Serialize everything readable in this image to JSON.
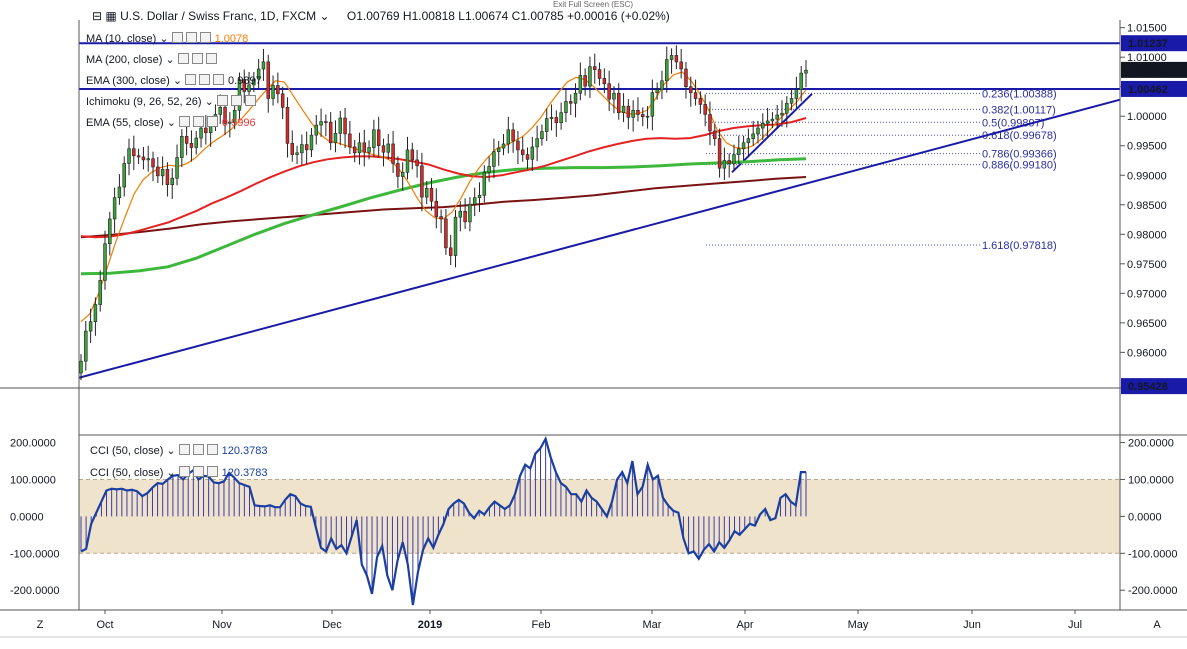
{
  "header": {
    "symbol_title": "U.S. Dollar / Swiss Franc, 1D, FXCM",
    "ohlc": "O1.00769  H1.00818  L1.00674  C1.00785  +0.00016 (+0.02%)",
    "exit_fullscreen": "Exit Full Screen (ESC)"
  },
  "indicators": [
    {
      "label": "MA (10, close)",
      "value": "1.0078",
      "color": "#f57c00"
    },
    {
      "label": "MA (200, close)",
      "value": "",
      "color": "#131722"
    },
    {
      "label": "EMA (300, close)",
      "value": "0.9897",
      "color": "#131722"
    },
    {
      "label": "Ichimoku (9, 26, 52, 26)",
      "value": "",
      "color": "#131722"
    },
    {
      "label": "EMA (55, close)",
      "value": "0.9996",
      "color": "#e53935"
    }
  ],
  "cci_labels": [
    {
      "label": "CCI (50, close)",
      "value": "120.3783"
    },
    {
      "label": "CCI (50, close)",
      "value": "120.3783"
    }
  ],
  "chart_data": {
    "type": "candlestick",
    "x_tick_labels": [
      "Oct",
      "Nov",
      "Dec",
      "2019",
      "Feb",
      "Mar",
      "Apr",
      "May",
      "Jun",
      "Jul"
    ],
    "y_tick_labels": [
      "1.01500",
      "1.01000",
      "1.00500",
      "1.00000",
      "0.99500",
      "0.99000",
      "0.98500",
      "0.98000",
      "0.97500",
      "0.97000",
      "0.96500",
      "0.96000"
    ],
    "ylim": [
      0.9543,
      1.0163
    ],
    "price_badges": [
      {
        "value": "1.01237",
        "fill": "#1a1aa8"
      },
      {
        "value": "1.00785",
        "fill": "#131722"
      },
      {
        "value": "1.00462",
        "fill": "#1a1aa8"
      },
      {
        "value": "0.95428",
        "fill": "#1a1aa8"
      }
    ],
    "horizontal_lines": [
      1.01237,
      1.00462
    ],
    "fibonacci": [
      {
        "label": "0.236(1.00388)",
        "value": 1.00388
      },
      {
        "label": "0.382(1.00117)",
        "value": 1.00117
      },
      {
        "label": "0.5(0.99897)",
        "value": 0.99897
      },
      {
        "label": "0.618(0.99678)",
        "value": 0.99678
      },
      {
        "label": "0.786(0.99366)",
        "value": 0.99366
      },
      {
        "label": "0.886(0.99180)",
        "value": 0.9918
      },
      {
        "label": "1.618(0.97818)",
        "value": 0.97818
      }
    ],
    "close_series": [
      0.9585,
      0.9636,
      0.9652,
      0.9681,
      0.9722,
      0.9784,
      0.9826,
      0.9862,
      0.988,
      0.992,
      0.9945,
      0.9933,
      0.9931,
      0.9926,
      0.9928,
      0.9914,
      0.9899,
      0.991,
      0.9884,
      0.9895,
      0.993,
      0.9966,
      0.9954,
      0.9947,
      0.9963,
      0.998,
      0.9972,
      0.9987,
      1.0003,
      1.0015,
      0.9988,
      0.999,
      1.001,
      1.0062,
      1.0042,
      1.0053,
      1.0063,
      1.008,
      1.0092,
      1.003,
      1.0052,
      1.0038,
      1.0015,
      0.9954,
      0.9935,
      0.9938,
      0.9952,
      0.9943,
      0.9968,
      0.9985,
      0.9991,
      0.999,
      0.9955,
      0.9971,
      0.9997,
      0.997,
      0.9948,
      0.9938,
      0.9955,
      0.9939,
      0.9947,
      0.9977,
      0.995,
      0.9939,
      0.9953,
      0.992,
      0.9898,
      0.9905,
      0.9943,
      0.9926,
      0.9916,
      0.9863,
      0.9878,
      0.9856,
      0.983,
      0.9826,
      0.9777,
      0.9764,
      0.9829,
      0.9839,
      0.9821,
      0.9851,
      0.9862,
      0.9866,
      0.9905,
      0.9915,
      0.994,
      0.9946,
      0.9953,
      0.9977,
      0.9958,
      0.9943,
      0.9935,
      0.9927,
      0.9948,
      0.9962,
      0.9974,
      0.9996,
      0.9998,
      0.9989,
      1.0006,
      1.0025,
      1.0022,
      1.0039,
      1.0069,
      1.0051,
      1.0084,
      1.0079,
      1.0064,
      1.0055,
      1.0029,
      1.0039,
      1.0006,
      1.0017,
      0.9998,
      1.001,
      1.0003,
      0.9999,
      1.0,
      1.004,
      1.0045,
      1.006,
      1.0096,
      1.0103,
      1.0092,
      1.008,
      1.005,
      1.004,
      1.003,
      1.002,
      1.0003,
      0.9975,
      0.9962,
      0.9912,
      0.9925,
      0.992,
      0.9935,
      0.9945,
      0.9955,
      0.9962,
      0.997,
      0.998,
      0.9988,
      0.9992,
      0.9995,
      1.0002,
      1.0005,
      1.0022,
      1.003,
      1.0045,
      1.0073,
      1.0078
    ],
    "ma10": [
      0.9652,
      0.9665,
      0.97,
      0.9745,
      0.979,
      0.983,
      0.9868,
      0.9892,
      0.9905,
      0.9913,
      0.9917,
      0.9915,
      0.992,
      0.993,
      0.9945,
      0.9957,
      0.9967,
      0.9978,
      0.9993,
      1.001,
      1.0028,
      1.0045,
      1.006,
      1.0058,
      1.0035,
      1.0012,
      0.999,
      0.997,
      0.9958,
      0.9955,
      0.995,
      0.9945,
      0.994,
      0.9935,
      0.9932,
      0.9925,
      0.991,
      0.9888,
      0.9862,
      0.984,
      0.9828,
      0.9826,
      0.9838,
      0.9862,
      0.989,
      0.9912,
      0.993,
      0.9945,
      0.995,
      0.9958,
      0.9966,
      0.998,
      0.9998,
      1.002,
      1.004,
      1.0058,
      1.0066,
      1.0062,
      1.005,
      1.0035,
      1.002,
      1.0008,
      1.0004,
      1.0004,
      1.001,
      1.003,
      1.0055,
      1.007,
      1.0075,
      1.006,
      1.0038,
      1.001,
      0.9975,
      0.9955,
      0.9947,
      0.9945,
      0.995,
      0.9962,
      0.9978,
      0.9995,
      1.001,
      1.0025,
      1.0045
    ],
    "ema55": [
      0.9797,
      0.9795,
      0.9796,
      0.98,
      0.9806,
      0.9813,
      0.982,
      0.983,
      0.984,
      0.9852,
      0.9862,
      0.9873,
      0.9885,
      0.9896,
      0.9906,
      0.9915,
      0.9922,
      0.9927,
      0.993,
      0.9932,
      0.9932,
      0.993,
      0.9927,
      0.9923,
      0.9918,
      0.991,
      0.9903,
      0.9898,
      0.9897,
      0.99,
      0.9905,
      0.991,
      0.9916,
      0.9924,
      0.9932,
      0.994,
      0.9947,
      0.9953,
      0.9958,
      0.9962,
      0.9963,
      0.9962,
      0.9963,
      0.9968,
      0.9975,
      0.998,
      0.9983,
      0.9985,
      0.9986,
      0.999,
      0.9997
    ],
    "ema300": [
      0.9795,
      0.9799,
      0.9804,
      0.981,
      0.9817,
      0.9822,
      0.9826,
      0.983,
      0.9834,
      0.9838,
      0.9842,
      0.9844,
      0.9846,
      0.985,
      0.9855,
      0.9858,
      0.9862,
      0.9866,
      0.9872,
      0.9878,
      0.9882,
      0.9886,
      0.989,
      0.9894,
      0.9897
    ],
    "ma200": [
      0.9733,
      0.9734,
      0.9738,
      0.9745,
      0.976,
      0.978,
      0.98,
      0.9818,
      0.9833,
      0.9847,
      0.9862,
      0.9875,
      0.9887,
      0.9897,
      0.9905,
      0.991,
      0.9912,
      0.9913,
      0.9913,
      0.9914,
      0.9916,
      0.9919,
      0.9921,
      0.9923,
      0.9926,
      0.9928
    ],
    "cci": {
      "title": "CCI (50, close)",
      "yticks": [
        "200.0000",
        "100.0000",
        "0.0000",
        "-100.0000",
        "-200.0000"
      ],
      "ylim": [
        -240,
        215
      ],
      "band": [
        -100,
        100
      ],
      "values": [
        -95,
        -88,
        -20,
        10,
        40,
        70,
        75,
        73,
        75,
        70,
        72,
        68,
        55,
        63,
        78,
        90,
        88,
        100,
        110,
        112,
        100,
        115,
        125,
        100,
        110,
        108,
        92,
        90,
        95,
        118,
        105,
        90,
        85,
        80,
        30,
        28,
        27,
        30,
        25,
        25,
        45,
        60,
        55,
        35,
        28,
        26,
        -30,
        -85,
        -95,
        -60,
        -88,
        -78,
        -100,
        -55,
        -10,
        -130,
        -160,
        -210,
        -110,
        -80,
        -160,
        -200,
        -120,
        -70,
        -130,
        -240,
        -150,
        -90,
        -60,
        -85,
        -50,
        -20,
        20,
        35,
        45,
        35,
        10,
        -5,
        15,
        5,
        25,
        40,
        30,
        20,
        30,
        60,
        110,
        140,
        130,
        170,
        185,
        210,
        160,
        120,
        90,
        80,
        60,
        60,
        40,
        70,
        50,
        40,
        20,
        0,
        40,
        100,
        120,
        90,
        150,
        60,
        80,
        140,
        100,
        110,
        50,
        30,
        15,
        10,
        -60,
        -100,
        -95,
        -115,
        -90,
        -75,
        -95,
        -70,
        -85,
        -65,
        -40,
        -50,
        -35,
        -20,
        -25,
        5,
        20,
        -10,
        -5,
        50,
        60,
        40,
        30,
        120,
        120
      ]
    },
    "annotations": [
      "0.236(1.00388)",
      "0.382(1.00117)",
      "0.5(0.99897)",
      "0.618(0.99678)",
      "0.786(0.99366)",
      "0.886(0.99180)",
      "1.618(0.97818)"
    ]
  },
  "bottom_bar": {
    "left_button": "Z",
    "right_button": "A"
  }
}
